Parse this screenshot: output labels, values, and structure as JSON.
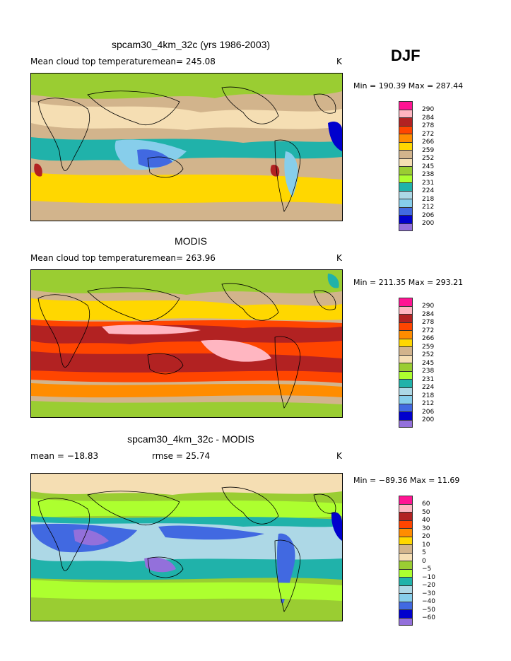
{
  "season": "DJF",
  "panels": [
    {
      "title": "spcam30_4km_32c (yrs 1986-2003)",
      "left_label": "Mean cloud top temperature",
      "mean_label": "mean= 245.08",
      "units": "K",
      "minmax": "Min = 190.39 Max = 287.44",
      "levels": [
        "290",
        "284",
        "278",
        "272",
        "266",
        "259",
        "252",
        "245",
        "238",
        "231",
        "224",
        "218",
        "212",
        "206",
        "200"
      ]
    },
    {
      "title": "MODIS",
      "left_label": "Mean cloud top temperature",
      "mean_label": "mean= 263.96",
      "units": "K",
      "minmax": "Min = 211.35 Max = 293.21",
      "levels": [
        "290",
        "284",
        "278",
        "272",
        "266",
        "259",
        "252",
        "245",
        "238",
        "231",
        "224",
        "218",
        "212",
        "206",
        "200"
      ]
    },
    {
      "title": "spcam30_4km_32c - MODIS",
      "left_label": "mean = −18.83",
      "mean_label": "rmse =  25.74",
      "units": "K",
      "minmax": "Min = −89.36 Max =  11.69",
      "levels": [
        "60",
        "50",
        "40",
        "30",
        "20",
        "10",
        "5",
        "0",
        "−5",
        "−10",
        "−20",
        "−30",
        "−40",
        "−50",
        "−60"
      ]
    }
  ],
  "colors": [
    "#ff1493",
    "#ffb6c1",
    "#b22222",
    "#ff4500",
    "#ff8c00",
    "#ffd700",
    "#d2b48c",
    "#f5deb3",
    "#9acd32",
    "#adff2f",
    "#20b2aa",
    "#add8e6",
    "#87ceeb",
    "#4169e1",
    "#0000cd",
    "#9370db"
  ]
}
